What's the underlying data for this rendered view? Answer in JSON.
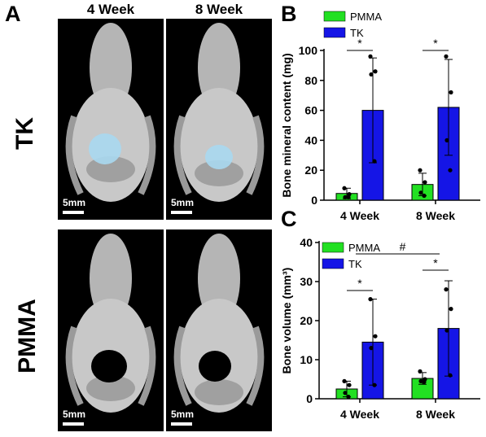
{
  "panel_a": {
    "letter": "A",
    "columns": [
      "4 Week",
      "8 Week"
    ],
    "rows": [
      "TK",
      "PMMA"
    ],
    "scale_bar_label": "5mm"
  },
  "colors": {
    "pmma": "#22e022",
    "tk": "#1515e6",
    "defect_fill": "#a8d8f0"
  },
  "chart_data": [
    {
      "letter": "B",
      "type": "bar",
      "categories": [
        "4 Week",
        "8 Week"
      ],
      "series": [
        {
          "name": "PMMA",
          "values": [
            4.5,
            10.5
          ],
          "error": [
            3.5,
            7.5
          ],
          "points": [
            [
              8,
              4,
              2,
              2
            ],
            [
              20,
              12,
              5,
              3
            ]
          ]
        },
        {
          "name": "TK",
          "values": [
            60,
            62
          ],
          "error": [
            35,
            32
          ],
          "points": [
            [
              96,
              86,
              84,
              26
            ],
            [
              96,
              72,
              40,
              20
            ]
          ]
        }
      ],
      "ylabel": "Bone mineral content (mg)",
      "ylim": [
        0,
        100
      ],
      "yticks": [
        0,
        20,
        40,
        60,
        80,
        100
      ],
      "legend": "top-left",
      "significance": [
        {
          "category": "4 Week",
          "label": "*"
        },
        {
          "category": "8 Week",
          "label": "*"
        }
      ]
    },
    {
      "letter": "C",
      "type": "bar",
      "categories": [
        "4 Week",
        "8 Week"
      ],
      "series": [
        {
          "name": "PMMA",
          "values": [
            2.5,
            5.2
          ],
          "error": [
            2.0,
            1.5
          ],
          "points": [
            [
              4.5,
              3.5,
              1.5,
              0.5
            ],
            [
              7,
              5,
              4.5,
              4.3
            ]
          ]
        },
        {
          "name": "TK",
          "values": [
            14.5,
            18.0
          ],
          "error": [
            11.0,
            12.2
          ],
          "points": [
            [
              25.5,
              16,
              13,
              3.5
            ],
            [
              28,
              23,
              17.5,
              6
            ]
          ]
        }
      ],
      "ylabel": "Bone volume (mm³)",
      "ylim": [
        0,
        40
      ],
      "yticks": [
        0,
        10,
        20,
        30,
        40
      ],
      "legend": "top-left",
      "significance": [
        {
          "category": "4 Week",
          "label": "*"
        },
        {
          "category": "8 Week",
          "label": "*"
        }
      ],
      "between_groups": {
        "label": "#"
      }
    }
  ]
}
